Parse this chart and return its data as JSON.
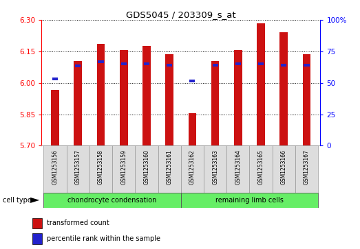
{
  "title": "GDS5045 / 203309_s_at",
  "samples": [
    "GSM1253156",
    "GSM1253157",
    "GSM1253158",
    "GSM1253159",
    "GSM1253160",
    "GSM1253161",
    "GSM1253162",
    "GSM1253163",
    "GSM1253164",
    "GSM1253165",
    "GSM1253166",
    "GSM1253167"
  ],
  "red_values": [
    5.965,
    6.105,
    6.185,
    6.155,
    6.175,
    6.135,
    5.855,
    6.105,
    6.155,
    6.285,
    6.24,
    6.135
  ],
  "blue_values": [
    6.02,
    6.08,
    6.1,
    6.09,
    6.09,
    6.085,
    6.01,
    6.085,
    6.09,
    6.09,
    6.085,
    6.085
  ],
  "ymin": 5.7,
  "ymax": 6.3,
  "yticks_left": [
    5.7,
    5.85,
    6.0,
    6.15,
    6.3
  ],
  "yticks_right": [
    0,
    25,
    50,
    75,
    100
  ],
  "group1_label": "chondrocyte condensation",
  "group2_label": "remaining limb cells",
  "group_color": "#66ee66",
  "bar_color": "#cc1111",
  "dot_color": "#2222cc",
  "bar_width": 0.35,
  "legend_red": "transformed count",
  "legend_blue": "percentile rank within the sample",
  "cell_type_label": "cell type"
}
